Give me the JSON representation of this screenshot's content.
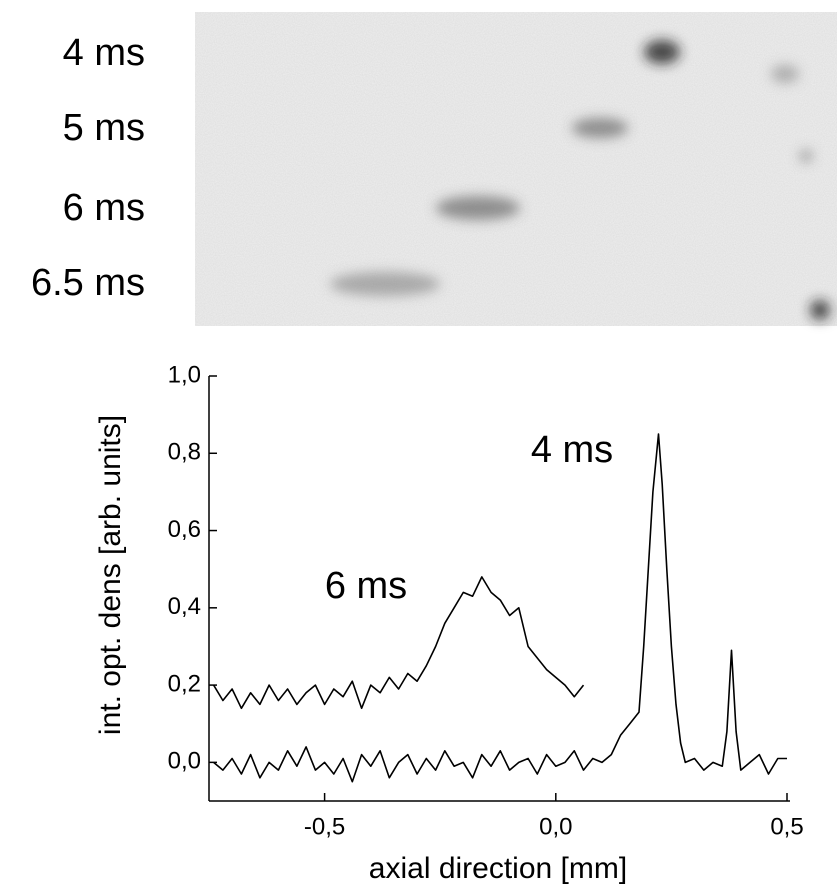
{
  "image_panel": {
    "labels": [
      "4 ms",
      "5 ms",
      "6 ms",
      "6.5 ms"
    ]
  },
  "chart_data": {
    "type": "line",
    "x_label": "axial direction [mm]",
    "y_label": "int. opt. dens [arb. units]",
    "annotations": [
      "4 ms",
      "6 ms"
    ],
    "xlim": [
      -0.75,
      0.5
    ],
    "ylim": [
      -0.1,
      1.0
    ],
    "xticks": [
      {
        "value": -0.5,
        "label": "-0,5"
      },
      {
        "value": 0.0,
        "label": "0,0"
      },
      {
        "value": 0.5,
        "label": "0,5"
      }
    ],
    "yticks": [
      {
        "value": 0.0,
        "label": "0,0"
      },
      {
        "value": 0.2,
        "label": "0,2"
      },
      {
        "value": 0.4,
        "label": "0,4"
      },
      {
        "value": 0.6,
        "label": "0,6"
      },
      {
        "value": 0.8,
        "label": "0,8"
      },
      {
        "value": 1.0,
        "label": "1,0"
      }
    ],
    "series": [
      {
        "color": "#000000",
        "x": [
          -0.74,
          -0.72,
          -0.7,
          -0.68,
          -0.66,
          -0.64,
          -0.62,
          -0.6,
          -0.58,
          -0.56,
          -0.54,
          -0.52,
          -0.5,
          -0.48,
          -0.46,
          -0.44,
          -0.42,
          -0.4,
          -0.38,
          -0.36,
          -0.34,
          -0.32,
          -0.3,
          -0.28,
          -0.26,
          -0.24,
          -0.22,
          -0.2,
          -0.18,
          -0.16,
          -0.14,
          -0.12,
          -0.1,
          -0.08,
          -0.06,
          -0.04,
          -0.02,
          0.0,
          0.02,
          0.04,
          0.06,
          0.08,
          0.1,
          0.12,
          0.14,
          0.16,
          0.18,
          0.19,
          0.2,
          0.21,
          0.222,
          0.23,
          0.24,
          0.25,
          0.26,
          0.27,
          0.28,
          0.3,
          0.32,
          0.34,
          0.36,
          0.37,
          0.38,
          0.39,
          0.4,
          0.42,
          0.44,
          0.46,
          0.48,
          0.5
        ],
        "values": [
          0.0,
          -0.02,
          0.01,
          -0.03,
          0.02,
          -0.04,
          0.0,
          -0.02,
          0.03,
          -0.01,
          0.04,
          -0.02,
          0.0,
          -0.03,
          0.01,
          -0.05,
          0.02,
          -0.01,
          0.03,
          -0.04,
          0.0,
          0.02,
          -0.03,
          0.01,
          -0.02,
          0.03,
          -0.01,
          0.0,
          -0.04,
          0.02,
          -0.01,
          0.03,
          -0.02,
          0.0,
          0.01,
          -0.03,
          0.02,
          -0.01,
          0.0,
          0.03,
          -0.02,
          0.01,
          0.0,
          0.02,
          0.07,
          0.1,
          0.13,
          0.3,
          0.5,
          0.7,
          0.85,
          0.72,
          0.5,
          0.3,
          0.15,
          0.05,
          0.0,
          0.01,
          -0.02,
          0.0,
          -0.01,
          0.08,
          0.29,
          0.08,
          -0.02,
          0.0,
          0.02,
          -0.03,
          0.01,
          0.01
        ]
      },
      {
        "color": "#000000",
        "x": [
          -0.74,
          -0.72,
          -0.7,
          -0.68,
          -0.66,
          -0.64,
          -0.62,
          -0.6,
          -0.58,
          -0.56,
          -0.54,
          -0.52,
          -0.5,
          -0.48,
          -0.46,
          -0.44,
          -0.42,
          -0.4,
          -0.38,
          -0.36,
          -0.34,
          -0.32,
          -0.3,
          -0.28,
          -0.26,
          -0.24,
          -0.22,
          -0.2,
          -0.18,
          -0.16,
          -0.14,
          -0.12,
          -0.1,
          -0.08,
          -0.06,
          -0.04,
          -0.02,
          0.0,
          0.02,
          0.04,
          0.06
        ],
        "values": [
          0.2,
          0.16,
          0.19,
          0.14,
          0.18,
          0.15,
          0.2,
          0.16,
          0.19,
          0.15,
          0.18,
          0.2,
          0.15,
          0.19,
          0.17,
          0.21,
          0.14,
          0.2,
          0.18,
          0.22,
          0.19,
          0.23,
          0.21,
          0.25,
          0.3,
          0.36,
          0.4,
          0.44,
          0.43,
          0.48,
          0.44,
          0.42,
          0.38,
          0.4,
          0.3,
          0.27,
          0.24,
          0.22,
          0.2,
          0.17,
          0.2
        ]
      }
    ]
  }
}
